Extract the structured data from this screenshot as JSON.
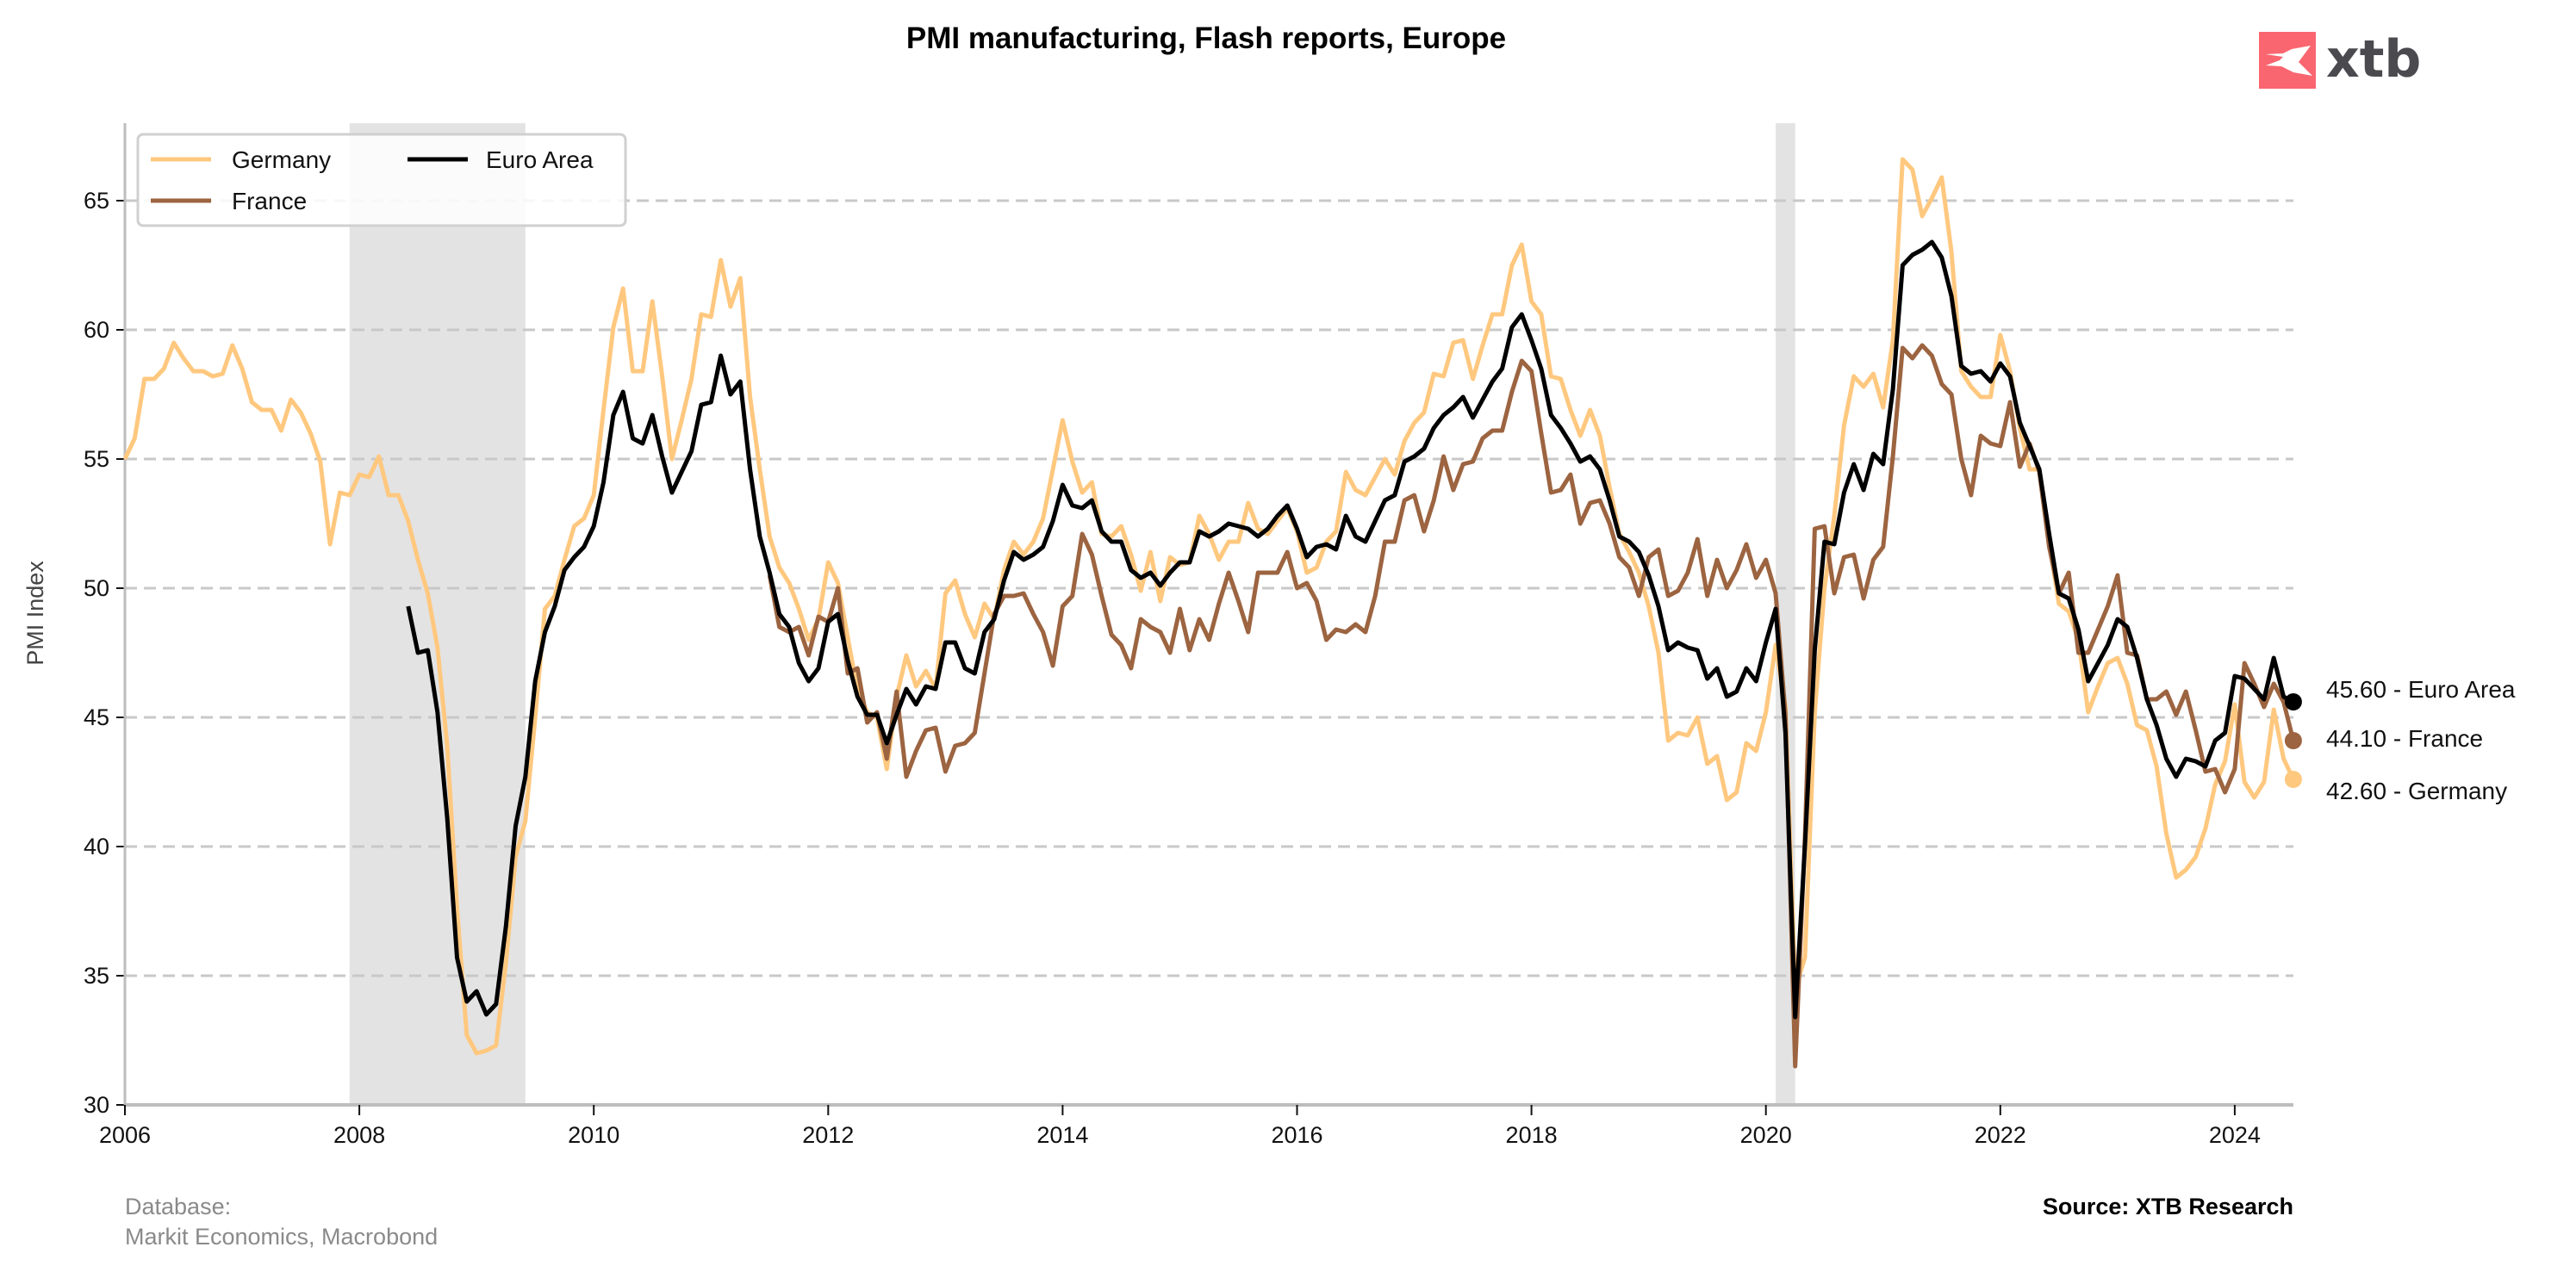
{
  "chart_data": {
    "type": "line",
    "title": "PMI manufacturing, Flash reports, Europe",
    "ylabel": "PMI Index",
    "xlabel": "",
    "xlim": [
      "2006-01",
      "2024-07"
    ],
    "ylim": [
      30,
      68
    ],
    "yticks": [
      30,
      35,
      40,
      45,
      50,
      55,
      60,
      65
    ],
    "xticks": [
      "2006",
      "2008",
      "2010",
      "2012",
      "2014",
      "2016",
      "2018",
      "2020",
      "2022",
      "2024"
    ],
    "grid": "horizontal dashed",
    "legend": "top-left",
    "shaded_periods": [
      [
        "2007-12",
        "2009-06"
      ],
      [
        "2020-02",
        "2020-04"
      ]
    ],
    "dates": [
      "2006-01",
      "2006-02",
      "2006-03",
      "2006-04",
      "2006-05",
      "2006-06",
      "2006-07",
      "2006-08",
      "2006-09",
      "2006-10",
      "2006-11",
      "2006-12",
      "2007-01",
      "2007-02",
      "2007-03",
      "2007-04",
      "2007-05",
      "2007-06",
      "2007-07",
      "2007-08",
      "2007-09",
      "2007-10",
      "2007-11",
      "2007-12",
      "2008-01",
      "2008-02",
      "2008-03",
      "2008-04",
      "2008-05",
      "2008-06",
      "2008-07",
      "2008-08",
      "2008-09",
      "2008-10",
      "2008-11",
      "2008-12",
      "2009-01",
      "2009-02",
      "2009-03",
      "2009-04",
      "2009-05",
      "2009-06",
      "2009-07",
      "2009-08",
      "2009-09",
      "2009-10",
      "2009-11",
      "2009-12",
      "2010-01",
      "2010-02",
      "2010-03",
      "2010-04",
      "2010-05",
      "2010-06",
      "2010-07",
      "2010-08",
      "2010-09",
      "2010-10",
      "2010-11",
      "2010-12",
      "2011-01",
      "2011-02",
      "2011-03",
      "2011-04",
      "2011-05",
      "2011-06",
      "2011-07",
      "2011-08",
      "2011-09",
      "2011-10",
      "2011-11",
      "2011-12",
      "2012-01",
      "2012-02",
      "2012-03",
      "2012-04",
      "2012-05",
      "2012-06",
      "2012-07",
      "2012-08",
      "2012-09",
      "2012-10",
      "2012-11",
      "2012-12",
      "2013-01",
      "2013-02",
      "2013-03",
      "2013-04",
      "2013-05",
      "2013-06",
      "2013-07",
      "2013-08",
      "2013-09",
      "2013-10",
      "2013-11",
      "2013-12",
      "2014-01",
      "2014-02",
      "2014-03",
      "2014-04",
      "2014-05",
      "2014-06",
      "2014-07",
      "2014-08",
      "2014-09",
      "2014-10",
      "2014-11",
      "2014-12",
      "2015-01",
      "2015-02",
      "2015-03",
      "2015-04",
      "2015-05",
      "2015-06",
      "2015-07",
      "2015-08",
      "2015-09",
      "2015-10",
      "2015-11",
      "2015-12",
      "2016-01",
      "2016-02",
      "2016-03",
      "2016-04",
      "2016-05",
      "2016-06",
      "2016-07",
      "2016-08",
      "2016-09",
      "2016-10",
      "2016-11",
      "2016-12",
      "2017-01",
      "2017-02",
      "2017-03",
      "2017-04",
      "2017-05",
      "2017-06",
      "2017-07",
      "2017-08",
      "2017-09",
      "2017-10",
      "2017-11",
      "2017-12",
      "2018-01",
      "2018-02",
      "2018-03",
      "2018-04",
      "2018-05",
      "2018-06",
      "2018-07",
      "2018-08",
      "2018-09",
      "2018-10",
      "2018-11",
      "2018-12",
      "2019-01",
      "2019-02",
      "2019-03",
      "2019-04",
      "2019-05",
      "2019-06",
      "2019-07",
      "2019-08",
      "2019-09",
      "2019-10",
      "2019-11",
      "2019-12",
      "2020-01",
      "2020-02",
      "2020-03",
      "2020-04",
      "2020-05",
      "2020-06",
      "2020-07",
      "2020-08",
      "2020-09",
      "2020-10",
      "2020-11",
      "2020-12",
      "2021-01",
      "2021-02",
      "2021-03",
      "2021-04",
      "2021-05",
      "2021-06",
      "2021-07",
      "2021-08",
      "2021-09",
      "2021-10",
      "2021-11",
      "2021-12",
      "2022-01",
      "2022-02",
      "2022-03",
      "2022-04",
      "2022-05",
      "2022-06",
      "2022-07",
      "2022-08",
      "2022-09",
      "2022-10",
      "2022-11",
      "2022-12",
      "2023-01",
      "2023-02",
      "2023-03",
      "2023-04",
      "2023-05",
      "2023-06",
      "2023-07",
      "2023-08",
      "2023-09",
      "2023-10",
      "2023-11",
      "2023-12",
      "2024-01",
      "2024-02",
      "2024-03",
      "2024-04",
      "2024-05",
      "2024-06",
      "2024-07"
    ],
    "series": [
      {
        "name": "Germany",
        "color": "#ffc87f",
        "last_label": "42.60 - Germany",
        "values": [
          55.0,
          55.8,
          58.1,
          58.1,
          58.5,
          59.5,
          58.9,
          58.4,
          58.4,
          58.2,
          58.3,
          59.4,
          58.5,
          57.2,
          56.9,
          56.9,
          56.1,
          57.3,
          56.8,
          56.0,
          54.9,
          51.7,
          53.7,
          53.6,
          54.4,
          54.3,
          55.1,
          53.6,
          53.6,
          52.6,
          51.1,
          49.8,
          47.7,
          43.9,
          37.6,
          32.7,
          32.0,
          32.1,
          32.3,
          35.5,
          39.6,
          41.0,
          45.0,
          49.2,
          49.7,
          51.1,
          52.4,
          52.7,
          53.6,
          56.9,
          60.1,
          61.6,
          58.4,
          58.4,
          61.1,
          58.2,
          55.0,
          56.5,
          58.1,
          60.6,
          60.5,
          62.7,
          60.9,
          62.0,
          57.4,
          54.6,
          52.0,
          50.8,
          50.2,
          49.2,
          48.0,
          48.8,
          51.0,
          50.2,
          48.1,
          46.0,
          45.2,
          45.0,
          43.0,
          45.8,
          47.4,
          46.2,
          46.8,
          46.1,
          49.8,
          50.3,
          49.0,
          48.1,
          49.4,
          48.8,
          50.7,
          51.8,
          51.3,
          51.8,
          52.7,
          54.6,
          56.5,
          54.9,
          53.7,
          54.1,
          52.1,
          52.0,
          52.4,
          51.3,
          49.9,
          51.4,
          49.5,
          51.2,
          50.9,
          51.0,
          52.8,
          52.1,
          51.1,
          51.8,
          51.8,
          53.3,
          52.3,
          52.1,
          52.6,
          53.1,
          52.2,
          50.6,
          50.8,
          51.8,
          52.2,
          54.5,
          53.8,
          53.6,
          54.3,
          55.0,
          54.4,
          55.7,
          56.4,
          56.8,
          58.3,
          58.2,
          59.5,
          59.6,
          58.1,
          59.4,
          60.6,
          60.6,
          62.5,
          63.3,
          61.1,
          60.6,
          58.2,
          58.1,
          56.9,
          55.9,
          56.9,
          55.9,
          53.9,
          52.1,
          51.4,
          50.6,
          49.3,
          47.5,
          44.1,
          44.4,
          44.3,
          45.0,
          43.2,
          43.5,
          41.8,
          42.1,
          44.0,
          43.7,
          45.2,
          47.8,
          45.4,
          34.5,
          35.7,
          45.2,
          50.0,
          52.8,
          56.3,
          58.2,
          57.8,
          58.3,
          57.0,
          59.6,
          66.6,
          66.2,
          64.4,
          65.1,
          65.9,
          63.0,
          58.4,
          57.8,
          57.4,
          57.4,
          59.8,
          58.4,
          56.2,
          54.6,
          54.6,
          51.8,
          49.4,
          49.1,
          48.0,
          45.2,
          46.2,
          47.1,
          47.3,
          46.3,
          44.7,
          44.5,
          43.1,
          40.5,
          38.8,
          39.1,
          39.6,
          40.7,
          42.4,
          43.3,
          45.5,
          42.5,
          41.9,
          42.5,
          45.3,
          43.4,
          42.6
        ]
      },
      {
        "name": "France",
        "color": "#9c6440",
        "last_label": "44.10 - France",
        "values": [
          null,
          null,
          null,
          null,
          null,
          null,
          null,
          null,
          null,
          null,
          null,
          null,
          null,
          null,
          null,
          null,
          null,
          null,
          null,
          null,
          null,
          null,
          null,
          null,
          null,
          null,
          null,
          null,
          null,
          null,
          null,
          null,
          null,
          null,
          null,
          null,
          null,
          null,
          null,
          null,
          null,
          null,
          null,
          null,
          null,
          null,
          null,
          null,
          null,
          null,
          null,
          null,
          null,
          null,
          null,
          null,
          null,
          null,
          null,
          null,
          null,
          null,
          null,
          null,
          null,
          null,
          50.5,
          48.5,
          48.3,
          48.5,
          47.4,
          48.9,
          48.7,
          50.0,
          46.7,
          46.9,
          44.8,
          45.2,
          43.4,
          46.0,
          42.7,
          43.7,
          44.5,
          44.6,
          42.9,
          43.9,
          44.0,
          44.4,
          46.7,
          49.0,
          49.7,
          49.7,
          49.8,
          49.0,
          48.3,
          47.0,
          49.3,
          49.7,
          52.1,
          51.3,
          49.7,
          48.2,
          47.8,
          46.9,
          48.8,
          48.5,
          48.3,
          47.5,
          49.2,
          47.6,
          48.8,
          48.0,
          49.4,
          50.6,
          49.5,
          48.3,
          50.6,
          50.6,
          50.6,
          51.4,
          50.0,
          50.2,
          49.5,
          48.0,
          48.4,
          48.3,
          48.6,
          48.3,
          49.7,
          51.8,
          51.8,
          53.4,
          53.6,
          52.2,
          53.4,
          55.1,
          53.8,
          54.8,
          54.9,
          55.8,
          56.1,
          56.1,
          57.6,
          58.8,
          58.4,
          56.0,
          53.7,
          53.8,
          54.4,
          52.5,
          53.3,
          53.4,
          52.5,
          51.2,
          50.8,
          49.7,
          51.2,
          51.5,
          49.7,
          49.9,
          50.6,
          51.9,
          49.7,
          51.1,
          50.0,
          50.7,
          51.7,
          50.4,
          51.1,
          49.8,
          45.1,
          31.5,
          40.3,
          52.3,
          52.4,
          49.8,
          51.2,
          51.3,
          49.6,
          51.1,
          51.6,
          55.1,
          59.3,
          58.9,
          59.4,
          59.0,
          57.9,
          57.5,
          55.0,
          53.6,
          55.9,
          55.6,
          55.5,
          57.2,
          54.7,
          55.6,
          54.5,
          51.6,
          49.8,
          50.6,
          47.5,
          47.5,
          48.4,
          49.3,
          50.5,
          47.5,
          47.4,
          45.7,
          45.7,
          46.0,
          45.1,
          46.0,
          44.5,
          42.9,
          43.0,
          42.1,
          43.0,
          47.1,
          46.3,
          45.4,
          46.3,
          45.6,
          44.1
        ]
      },
      {
        "name": "Euro Area",
        "color": "#000000",
        "last_label": "45.60 - Euro Area",
        "values": [
          null,
          null,
          null,
          null,
          null,
          null,
          null,
          null,
          null,
          null,
          null,
          null,
          null,
          null,
          null,
          null,
          null,
          null,
          null,
          null,
          null,
          null,
          null,
          null,
          null,
          null,
          null,
          null,
          null,
          49.3,
          47.5,
          47.6,
          45.2,
          41.1,
          35.7,
          34.0,
          34.4,
          33.5,
          33.9,
          36.9,
          40.8,
          42.7,
          46.4,
          48.3,
          49.3,
          50.7,
          51.2,
          51.6,
          52.4,
          54.1,
          56.7,
          57.6,
          55.8,
          55.6,
          56.7,
          55.1,
          53.7,
          54.5,
          55.3,
          57.1,
          57.2,
          59.0,
          57.5,
          58.0,
          54.6,
          52.0,
          50.6,
          49.0,
          48.5,
          47.1,
          46.4,
          46.9,
          48.7,
          49.0,
          47.2,
          45.8,
          45.1,
          45.1,
          44.0,
          45.1,
          46.1,
          45.5,
          46.2,
          46.1,
          47.9,
          47.9,
          46.9,
          46.7,
          48.3,
          48.8,
          50.3,
          51.4,
          51.1,
          51.3,
          51.6,
          52.6,
          54.0,
          53.2,
          53.1,
          53.4,
          52.2,
          51.8,
          51.8,
          50.7,
          50.4,
          50.6,
          50.1,
          50.6,
          51.0,
          51.0,
          52.2,
          52.0,
          52.2,
          52.5,
          52.4,
          52.3,
          52.0,
          52.3,
          52.8,
          53.2,
          52.3,
          51.2,
          51.6,
          51.7,
          51.5,
          52.8,
          52.0,
          51.8,
          52.6,
          53.4,
          53.6,
          54.9,
          55.1,
          55.4,
          56.2,
          56.7,
          57.0,
          57.4,
          56.6,
          57.3,
          58.0,
          58.5,
          60.1,
          60.6,
          59.6,
          58.5,
          56.7,
          56.2,
          55.6,
          54.9,
          55.1,
          54.6,
          53.4,
          52.0,
          51.8,
          51.4,
          50.5,
          49.3,
          47.6,
          47.9,
          47.7,
          47.6,
          46.5,
          46.9,
          45.8,
          46.0,
          46.9,
          46.4,
          47.9,
          49.2,
          44.4,
          33.4,
          40.0,
          47.6,
          51.8,
          51.7,
          53.7,
          54.8,
          53.8,
          55.2,
          54.8,
          57.7,
          62.5,
          62.9,
          63.1,
          63.4,
          62.8,
          61.3,
          58.6,
          58.3,
          58.4,
          58.0,
          58.7,
          58.2,
          56.4,
          55.5,
          54.6,
          52.1,
          49.8,
          49.6,
          48.4,
          46.4,
          47.1,
          47.8,
          48.8,
          48.5,
          47.3,
          45.7,
          44.7,
          43.4,
          42.7,
          43.4,
          43.3,
          43.1,
          44.1,
          44.4,
          46.6,
          46.5,
          46.1,
          45.7,
          47.3,
          45.8,
          45.6
        ]
      }
    ]
  },
  "footer": {
    "database_label": "Database:",
    "database_sources": "Markit Economics, Macrobond",
    "source": "Source: XTB Research"
  },
  "logo": {
    "text": "xtb",
    "color": "#f96670"
  }
}
